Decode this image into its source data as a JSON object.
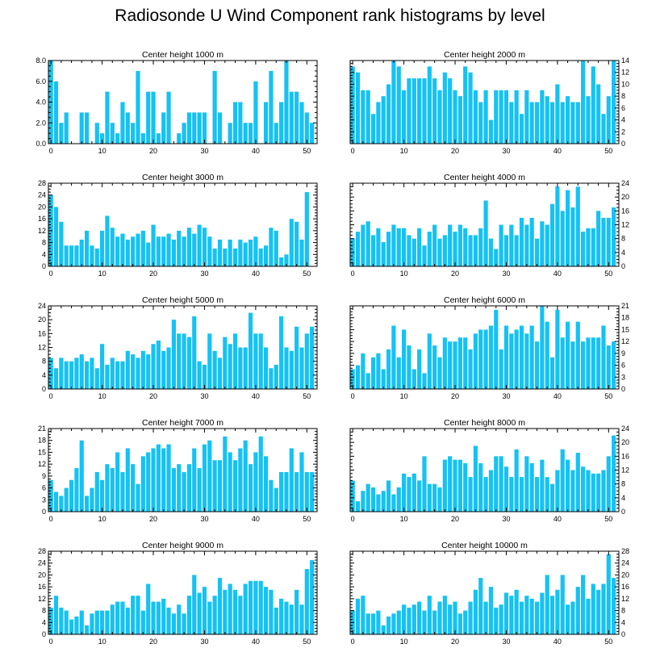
{
  "title": "Radiosonde U Wind Component rank histograms by level",
  "colors": {
    "bar": "#15c2f3",
    "axis": "#000000",
    "background": "#ffffff"
  },
  "chart_data": [
    {
      "type": "bar",
      "title": "Center height 1000 m",
      "x_ticks": [
        0,
        10,
        20,
        30,
        40,
        50
      ],
      "y_ticks": [
        0,
        2,
        4,
        6,
        8
      ],
      "y_tick_labels": [
        "0.0",
        "2.0",
        "4.0",
        "6.0",
        "8.0"
      ],
      "y_side": "left",
      "xlim": [
        -0.5,
        52
      ],
      "ylim": [
        0,
        8
      ],
      "values": [
        8,
        6,
        2,
        3,
        0,
        0,
        3,
        3,
        0,
        2,
        1,
        5,
        2,
        1,
        4,
        3,
        2,
        7,
        1,
        5,
        5,
        1,
        3,
        5,
        0,
        1,
        2,
        3,
        3,
        3,
        3,
        0,
        7,
        3,
        0,
        2,
        4,
        4,
        2,
        2,
        6,
        0,
        4,
        7,
        2,
        4,
        8,
        5,
        5,
        4,
        3,
        2
      ]
    },
    {
      "type": "bar",
      "title": "Center height 2000 m",
      "x_ticks": [
        0,
        10,
        20,
        30,
        40,
        50
      ],
      "y_ticks": [
        0,
        2,
        4,
        6,
        8,
        10,
        12,
        14
      ],
      "y_tick_labels": [
        "0",
        "2",
        "4",
        "6",
        "8",
        "10",
        "12",
        "14"
      ],
      "y_side": "right",
      "xlim": [
        -0.5,
        52
      ],
      "ylim": [
        0,
        14
      ],
      "values": [
        13,
        12,
        9,
        9,
        5,
        7,
        8,
        10,
        14,
        13,
        9,
        11,
        11,
        11,
        11,
        13,
        11,
        9,
        12,
        11,
        9,
        8,
        13,
        12,
        9,
        7,
        9,
        4,
        9,
        9,
        9,
        7,
        9,
        5,
        9,
        7,
        7,
        9,
        8,
        7,
        10,
        7,
        8,
        7,
        7,
        14,
        8,
        13,
        10,
        5,
        8,
        14
      ]
    },
    {
      "type": "bar",
      "title": "Center height 3000 m",
      "x_ticks": [
        0,
        10,
        20,
        30,
        40,
        50
      ],
      "y_ticks": [
        0,
        4,
        8,
        12,
        16,
        20,
        24,
        28
      ],
      "y_tick_labels": [
        "0",
        "4",
        "8",
        "12",
        "16",
        "20",
        "24",
        "28"
      ],
      "y_side": "left",
      "xlim": [
        -0.5,
        52
      ],
      "ylim": [
        0,
        28
      ],
      "values": [
        24,
        20,
        15,
        7,
        7,
        7,
        9,
        12,
        7,
        6,
        12,
        17,
        13,
        10,
        11,
        9,
        10,
        11,
        12,
        8,
        14,
        10,
        10,
        11,
        9,
        12,
        10,
        13,
        11,
        14,
        13,
        10,
        6,
        9,
        6,
        9,
        6,
        9,
        8,
        9,
        10,
        6,
        7,
        13,
        12,
        3,
        4,
        16,
        15,
        9,
        25,
        0
      ]
    },
    {
      "type": "bar",
      "title": "Center height 4000 m",
      "x_ticks": [
        0,
        10,
        20,
        30,
        40,
        50
      ],
      "y_ticks": [
        0,
        4,
        8,
        12,
        16,
        20,
        24
      ],
      "y_tick_labels": [
        "0",
        "4",
        "8",
        "12",
        "16",
        "20",
        "24"
      ],
      "y_side": "right",
      "xlim": [
        -0.5,
        52
      ],
      "ylim": [
        0,
        24
      ],
      "values": [
        8,
        10,
        12,
        13,
        9,
        11,
        7,
        10,
        12,
        11,
        11,
        9,
        8,
        11,
        6,
        10,
        12,
        8,
        9,
        12,
        10,
        12,
        11,
        9,
        9,
        11,
        19,
        8,
        5,
        12,
        9,
        12,
        9,
        14,
        12,
        14,
        8,
        13,
        12,
        18,
        23,
        16,
        22,
        17,
        23,
        10,
        11,
        11,
        16,
        14,
        14,
        17
      ]
    },
    {
      "type": "bar",
      "title": "Center height 5000 m",
      "x_ticks": [
        0,
        10,
        20,
        30,
        40,
        50
      ],
      "y_ticks": [
        0,
        4,
        8,
        12,
        16,
        20,
        24
      ],
      "y_tick_labels": [
        "0",
        "4",
        "8",
        "12",
        "16",
        "20",
        "24"
      ],
      "y_side": "left",
      "xlim": [
        -0.5,
        52
      ],
      "ylim": [
        0,
        24
      ],
      "values": [
        9,
        6,
        9,
        8,
        8,
        9,
        10,
        8,
        9,
        6,
        13,
        7,
        9,
        8,
        8,
        11,
        10,
        9,
        11,
        10,
        13,
        14,
        11,
        12,
        20,
        16,
        16,
        15,
        21,
        8,
        7,
        16,
        11,
        9,
        15,
        13,
        16,
        12,
        12,
        22,
        16,
        16,
        12,
        6,
        7,
        21,
        12,
        11,
        18,
        12,
        16,
        18
      ]
    },
    {
      "type": "bar",
      "title": "Center height 6000 m",
      "x_ticks": [
        0,
        10,
        20,
        30,
        40,
        50
      ],
      "y_ticks": [
        0,
        3,
        6,
        9,
        12,
        15,
        18,
        21
      ],
      "y_tick_labels": [
        "0",
        "3",
        "6",
        "9",
        "12",
        "15",
        "18",
        "21"
      ],
      "y_side": "right",
      "xlim": [
        -0.5,
        52
      ],
      "ylim": [
        0,
        21
      ],
      "values": [
        5,
        6,
        9,
        4,
        8,
        9,
        5,
        10,
        16,
        8,
        15,
        11,
        5,
        10,
        4,
        14,
        11,
        8,
        13,
        12,
        12,
        13,
        13,
        10,
        14,
        15,
        15,
        16,
        20,
        10,
        16,
        14,
        15,
        16,
        14,
        16,
        12,
        21,
        17,
        8,
        20,
        13,
        17,
        12,
        17,
        12,
        13,
        13,
        13,
        16,
        11,
        12
      ]
    },
    {
      "type": "bar",
      "title": "Center height 7000 m",
      "x_ticks": [
        0,
        10,
        20,
        30,
        40,
        50
      ],
      "y_ticks": [
        0,
        3,
        6,
        9,
        12,
        15,
        18,
        21
      ],
      "y_tick_labels": [
        "0",
        "3",
        "6",
        "9",
        "12",
        "15",
        "18",
        "21"
      ],
      "y_side": "left",
      "xlim": [
        -0.5,
        52
      ],
      "ylim": [
        0,
        21
      ],
      "values": [
        8,
        5,
        4,
        6,
        8,
        11,
        18,
        4,
        6,
        10,
        8,
        12,
        11,
        15,
        10,
        16,
        12,
        7,
        14,
        15,
        16,
        17,
        16,
        17,
        11,
        12,
        10,
        12,
        16,
        11,
        17,
        18,
        13,
        13,
        19,
        15,
        13,
        16,
        18,
        12,
        15,
        19,
        14,
        8,
        6,
        10,
        10,
        16,
        10,
        15,
        10,
        10
      ]
    },
    {
      "type": "bar",
      "title": "Center height 8000 m",
      "x_ticks": [
        0,
        10,
        20,
        30,
        40,
        50
      ],
      "y_ticks": [
        0,
        4,
        8,
        12,
        16,
        20,
        24
      ],
      "y_tick_labels": [
        "0",
        "4",
        "8",
        "12",
        "16",
        "20",
        "24"
      ],
      "y_side": "right",
      "xlim": [
        -0.5,
        52
      ],
      "ylim": [
        0,
        24
      ],
      "values": [
        9,
        3,
        6,
        8,
        7,
        5,
        6,
        9,
        5,
        7,
        11,
        10,
        11,
        9,
        16,
        8,
        8,
        7,
        15,
        16,
        15,
        15,
        14,
        10,
        19,
        14,
        10,
        12,
        16,
        16,
        13,
        10,
        18,
        10,
        16,
        14,
        10,
        15,
        10,
        8,
        12,
        18,
        15,
        12,
        17,
        13,
        12,
        11,
        11,
        12,
        16,
        22
      ]
    },
    {
      "type": "bar",
      "title": "Center height 9000 m",
      "x_ticks": [
        0,
        10,
        20,
        30,
        40,
        50
      ],
      "y_ticks": [
        0,
        4,
        8,
        12,
        16,
        20,
        24,
        28
      ],
      "y_tick_labels": [
        "0",
        "4",
        "8",
        "12",
        "16",
        "20",
        "24",
        "28"
      ],
      "y_side": "left",
      "xlim": [
        -0.5,
        52
      ],
      "ylim": [
        0,
        28
      ],
      "values": [
        9,
        13,
        9,
        8,
        5,
        6,
        8,
        3,
        7,
        8,
        8,
        8,
        10,
        11,
        11,
        9,
        13,
        13,
        8,
        17,
        11,
        11,
        12,
        9,
        7,
        10,
        7,
        13,
        20,
        14,
        16,
        11,
        13,
        19,
        15,
        17,
        15,
        13,
        17,
        18,
        18,
        18,
        16,
        15,
        9,
        12,
        11,
        10,
        15,
        10,
        22,
        25
      ]
    },
    {
      "type": "bar",
      "title": "Center height 10000 m",
      "x_ticks": [
        0,
        10,
        20,
        30,
        40,
        50
      ],
      "y_ticks": [
        0,
        4,
        8,
        12,
        16,
        20,
        24,
        28
      ],
      "y_tick_labels": [
        "0",
        "4",
        "8",
        "12",
        "16",
        "20",
        "24",
        "28"
      ],
      "y_side": "right",
      "xlim": [
        -0.5,
        52
      ],
      "ylim": [
        0,
        28
      ],
      "values": [
        8,
        12,
        13,
        7,
        7,
        8,
        3,
        6,
        7,
        8,
        10,
        9,
        10,
        11,
        8,
        13,
        8,
        11,
        13,
        10,
        11,
        7,
        8,
        11,
        15,
        19,
        11,
        16,
        9,
        10,
        14,
        13,
        15,
        11,
        13,
        12,
        11,
        14,
        20,
        13,
        15,
        20,
        10,
        11,
        16,
        20,
        12,
        17,
        15,
        17,
        27,
        19
      ]
    }
  ]
}
